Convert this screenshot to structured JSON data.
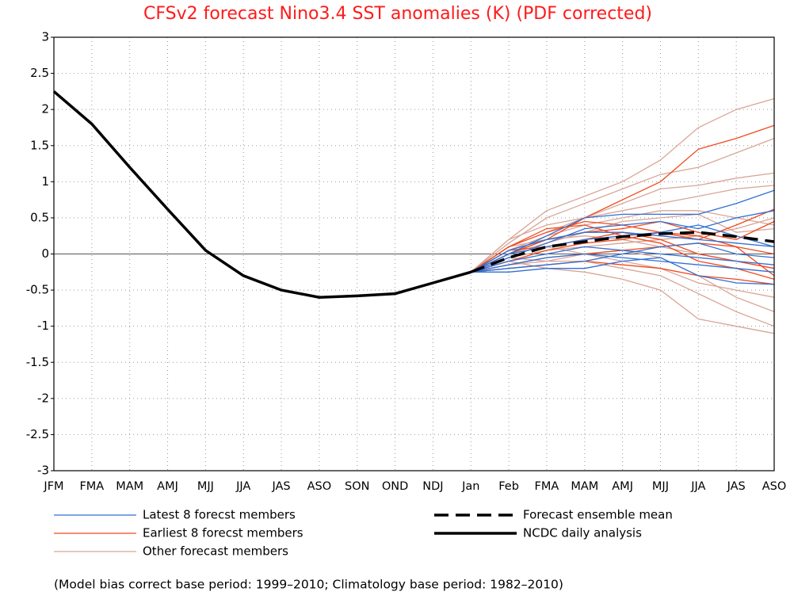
{
  "chart_data": {
    "type": "line",
    "title": "CFSv2 forecast Nino3.4 SST anomalies (K) (PDF corrected)",
    "note": "(Model bias correct base period: 1999–2010; Climatology base period: 1982–2010)",
    "categories": [
      "JFM",
      "FMA",
      "MAM",
      "AMJ",
      "MJJ",
      "JJA",
      "JAS",
      "ASO",
      "SON",
      "OND",
      "NDJ",
      "Jan",
      "Feb",
      "FMA",
      "MAM",
      "AMJ",
      "MJJ",
      "JJA",
      "JAS",
      "ASO"
    ],
    "ylim": [
      -3,
      3
    ],
    "yticks": [
      -3,
      -2.5,
      -2,
      -1.5,
      -1,
      -0.5,
      0,
      0.5,
      1,
      1.5,
      2,
      2.5,
      3
    ],
    "grid": true,
    "member_groups": [
      {
        "name": "Latest 8 forecst members",
        "color": "#2f6fd6",
        "members": [
          [
            null,
            null,
            null,
            null,
            null,
            null,
            null,
            null,
            null,
            null,
            null,
            -0.25,
            0.0,
            0.25,
            0.5,
            0.55,
            0.55,
            0.55,
            0.7,
            0.88
          ],
          [
            null,
            null,
            null,
            null,
            null,
            null,
            null,
            null,
            null,
            null,
            null,
            -0.25,
            -0.05,
            0.15,
            0.35,
            0.4,
            0.45,
            0.35,
            0.5,
            0.6
          ],
          [
            null,
            null,
            null,
            null,
            null,
            null,
            null,
            null,
            null,
            null,
            null,
            -0.25,
            0.05,
            0.2,
            0.3,
            0.3,
            0.25,
            0.2,
            0.15,
            0.1
          ],
          [
            null,
            null,
            null,
            null,
            null,
            null,
            null,
            null,
            null,
            null,
            null,
            -0.25,
            -0.1,
            0.0,
            0.1,
            0.05,
            0.0,
            -0.05,
            -0.1,
            -0.15
          ],
          [
            null,
            null,
            null,
            null,
            null,
            null,
            null,
            null,
            null,
            null,
            null,
            -0.25,
            -0.25,
            -0.2,
            -0.2,
            -0.1,
            -0.05,
            -0.3,
            -0.4,
            -0.42
          ],
          [
            null,
            null,
            null,
            null,
            null,
            null,
            null,
            null,
            null,
            null,
            null,
            -0.25,
            -0.15,
            -0.05,
            0.0,
            -0.05,
            -0.1,
            -0.15,
            -0.2,
            -0.25
          ],
          [
            null,
            null,
            null,
            null,
            null,
            null,
            null,
            null,
            null,
            null,
            null,
            -0.25,
            0.0,
            0.1,
            0.2,
            0.25,
            0.3,
            0.4,
            0.25,
            0.1
          ],
          [
            null,
            null,
            null,
            null,
            null,
            null,
            null,
            null,
            null,
            null,
            null,
            -0.25,
            -0.2,
            -0.15,
            -0.1,
            0.0,
            0.1,
            0.15,
            0.0,
            -0.05
          ]
        ]
      },
      {
        "name": "Earliest 8 forecst members",
        "color": "#f04a1e",
        "members": [
          [
            null,
            null,
            null,
            null,
            null,
            null,
            null,
            null,
            null,
            null,
            null,
            -0.25,
            0.0,
            0.2,
            0.5,
            0.75,
            1.0,
            1.45,
            1.6,
            1.78
          ],
          [
            null,
            null,
            null,
            null,
            null,
            null,
            null,
            null,
            null,
            null,
            null,
            -0.25,
            0.1,
            0.3,
            0.45,
            0.4,
            0.3,
            0.2,
            0.4,
            0.62
          ],
          [
            null,
            null,
            null,
            null,
            null,
            null,
            null,
            null,
            null,
            null,
            null,
            -0.25,
            -0.1,
            0.05,
            0.15,
            0.2,
            0.3,
            0.25,
            0.1,
            -0.3
          ],
          [
            null,
            null,
            null,
            null,
            null,
            null,
            null,
            null,
            null,
            null,
            null,
            -0.25,
            -0.2,
            -0.15,
            -0.1,
            -0.15,
            -0.2,
            -0.3,
            -0.35,
            -0.42
          ],
          [
            null,
            null,
            null,
            null,
            null,
            null,
            null,
            null,
            null,
            null,
            null,
            -0.25,
            0.05,
            0.1,
            0.2,
            0.3,
            0.2,
            0.0,
            -0.1,
            -0.2
          ],
          [
            null,
            null,
            null,
            null,
            null,
            null,
            null,
            null,
            null,
            null,
            null,
            -0.25,
            0.0,
            0.2,
            0.3,
            0.35,
            0.45,
            0.3,
            0.2,
            0.45
          ],
          [
            null,
            null,
            null,
            null,
            null,
            null,
            null,
            null,
            null,
            null,
            null,
            -0.25,
            -0.15,
            -0.05,
            0.0,
            0.05,
            0.1,
            0.15,
            0.1,
            0.0
          ],
          [
            null,
            null,
            null,
            null,
            null,
            null,
            null,
            null,
            null,
            null,
            null,
            -0.25,
            0.1,
            0.35,
            0.4,
            0.25,
            0.15,
            -0.1,
            -0.2,
            -0.35
          ]
        ]
      },
      {
        "name": "Other forecast members",
        "color": "#d9a596",
        "members": [
          [
            null,
            null,
            null,
            null,
            null,
            null,
            null,
            null,
            null,
            null,
            null,
            -0.25,
            0.2,
            0.6,
            0.8,
            1.0,
            1.3,
            1.75,
            2.0,
            2.15
          ],
          [
            null,
            null,
            null,
            null,
            null,
            null,
            null,
            null,
            null,
            null,
            null,
            -0.25,
            0.15,
            0.5,
            0.7,
            0.9,
            1.1,
            1.2,
            1.4,
            1.6
          ],
          [
            null,
            null,
            null,
            null,
            null,
            null,
            null,
            null,
            null,
            null,
            null,
            -0.25,
            0.1,
            0.3,
            0.5,
            0.7,
            0.9,
            0.95,
            1.05,
            1.12
          ],
          [
            null,
            null,
            null,
            null,
            null,
            null,
            null,
            null,
            null,
            null,
            null,
            -0.25,
            0.05,
            0.25,
            0.4,
            0.5,
            0.6,
            0.6,
            0.5,
            0.4
          ],
          [
            null,
            null,
            null,
            null,
            null,
            null,
            null,
            null,
            null,
            null,
            null,
            -0.25,
            -0.1,
            -0.2,
            -0.25,
            -0.35,
            -0.5,
            -0.9,
            -1.0,
            -1.1
          ],
          [
            null,
            null,
            null,
            null,
            null,
            null,
            null,
            null,
            null,
            null,
            null,
            -0.25,
            -0.05,
            -0.1,
            -0.1,
            -0.2,
            -0.3,
            -0.55,
            -0.8,
            -1.0
          ],
          [
            null,
            null,
            null,
            null,
            null,
            null,
            null,
            null,
            null,
            null,
            null,
            -0.25,
            0.0,
            0.1,
            0.0,
            -0.1,
            -0.2,
            -0.4,
            -0.5,
            -0.6
          ],
          [
            null,
            null,
            null,
            null,
            null,
            null,
            null,
            null,
            null,
            null,
            null,
            -0.25,
            0.1,
            0.2,
            0.25,
            0.2,
            0.1,
            0.0,
            -0.1,
            -0.2
          ],
          [
            null,
            null,
            null,
            null,
            null,
            null,
            null,
            null,
            null,
            null,
            null,
            -0.25,
            -0.15,
            -0.1,
            0.0,
            0.05,
            -0.05,
            -0.3,
            -0.6,
            -0.8
          ],
          [
            null,
            null,
            null,
            null,
            null,
            null,
            null,
            null,
            null,
            null,
            null,
            -0.25,
            0.2,
            0.4,
            0.5,
            0.6,
            0.7,
            0.8,
            0.9,
            0.95
          ],
          [
            null,
            null,
            null,
            null,
            null,
            null,
            null,
            null,
            null,
            null,
            null,
            -0.25,
            0.0,
            0.15,
            0.3,
            0.45,
            0.5,
            0.55,
            0.3,
            0.35
          ],
          [
            null,
            null,
            null,
            null,
            null,
            null,
            null,
            null,
            null,
            null,
            null,
            -0.25,
            -0.05,
            0.05,
            0.1,
            0.15,
            0.2,
            0.25,
            0.35,
            0.5
          ]
        ]
      }
    ],
    "series": [
      {
        "name": "Forecast ensemble mean",
        "color": "#000000",
        "dashed": true,
        "values": [
          null,
          null,
          null,
          null,
          null,
          null,
          null,
          null,
          null,
          null,
          null,
          -0.25,
          -0.05,
          0.1,
          0.17,
          0.24,
          0.28,
          0.3,
          0.24,
          0.17
        ]
      },
      {
        "name": "NCDC daily analysis",
        "color": "#000000",
        "dashed": false,
        "values": [
          2.25,
          1.8,
          1.2,
          0.62,
          0.05,
          -0.3,
          -0.5,
          -0.6,
          -0.58,
          -0.55,
          -0.4,
          -0.25,
          null,
          null,
          null,
          null,
          null,
          null,
          null,
          null
        ]
      }
    ]
  }
}
